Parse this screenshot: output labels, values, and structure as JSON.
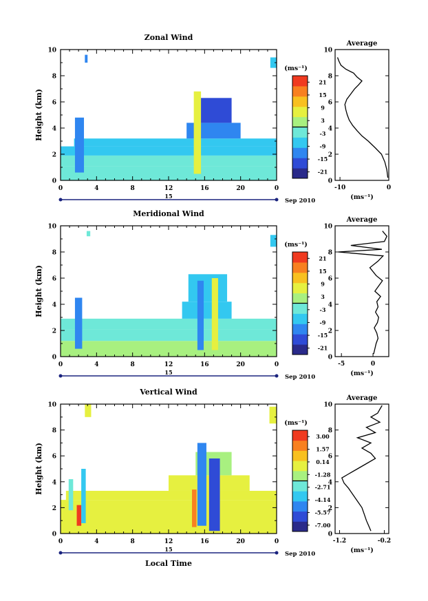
{
  "figure": {
    "date_label": "Sep 2010",
    "day_label": "15",
    "xlabel": "Local Time",
    "ylabel": "Height (km)",
    "unit_label": "(ms⁻¹)",
    "average_title": "Average",
    "x_ticks": [
      "0",
      "4",
      "8",
      "12",
      "16",
      "20",
      "0"
    ],
    "y_ticks": [
      "0",
      "2",
      "4",
      "6",
      "8",
      "10"
    ]
  },
  "chart_data": [
    {
      "type": "heatmap",
      "title": "Zonal Wind",
      "x_range_hours": [
        0,
        24
      ],
      "y_range_km": [
        0,
        10
      ],
      "colorbar": {
        "labels": [
          "21",
          "15",
          "9",
          "3",
          "-3",
          "-9",
          "-15",
          "-21"
        ],
        "min": -24,
        "max": 24
      },
      "palette": [
        "#2a2a8a",
        "#2f4bd6",
        "#2f86f0",
        "#33c8f0",
        "#6ee8d8",
        "#a8f080",
        "#e6f040",
        "#f8c020",
        "#f88020",
        "#f03a20"
      ],
      "regions": [
        {
          "x": [
            0,
            24
          ],
          "y": [
            0,
            1.1
          ],
          "v": -1
        },
        {
          "x": [
            0,
            24
          ],
          "y": [
            1.1,
            1.9
          ],
          "v": -3
        },
        {
          "x": [
            0,
            24
          ],
          "y": [
            1.9,
            2.6
          ],
          "v": -5
        },
        {
          "x": [
            1.5,
            24
          ],
          "y": [
            2.6,
            3.2
          ],
          "v": -7
        },
        {
          "x": [
            14,
            20
          ],
          "y": [
            3.2,
            4.4
          ],
          "v": -10
        },
        {
          "x": [
            15,
            19
          ],
          "y": [
            4.4,
            6.3
          ],
          "v": -15
        },
        {
          "x": [
            1.6,
            2.6
          ],
          "y": [
            0.6,
            4.8
          ],
          "v": -13
        },
        {
          "x": [
            14.8,
            15.6
          ],
          "y": [
            0.5,
            6.8
          ],
          "v": 6
        },
        {
          "x": [
            23.3,
            24
          ],
          "y": [
            8.6,
            9.4
          ],
          "v": -8
        },
        {
          "x": [
            2.7,
            3.0
          ],
          "y": [
            9.0,
            9.6
          ],
          "v": -14
        }
      ],
      "average": {
        "xticks": [
          "-10",
          "0"
        ],
        "xlim": [
          -11,
          0
        ],
        "ylim": [
          0,
          10
        ],
        "x": [
          -0.2,
          -0.4,
          -0.8,
          -1.5,
          -2.8,
          -4.2,
          -5.5,
          -6.5,
          -7.4,
          -8.1,
          -8.5,
          -8.8,
          -9.0,
          -8.6,
          -7.8,
          -7.0,
          -6.2,
          -5.5,
          -6.5,
          -7.2,
          -8.8,
          -9.8,
          -10.2,
          -10.5
        ],
        "y": [
          0.2,
          0.8,
          1.4,
          2.0,
          2.5,
          3.0,
          3.4,
          3.8,
          4.2,
          4.6,
          5.0,
          5.4,
          5.8,
          6.2,
          6.6,
          7.0,
          7.3,
          7.6,
          7.9,
          8.2,
          8.5,
          8.8,
          9.1,
          9.4
        ]
      }
    },
    {
      "type": "heatmap",
      "title": "Meridional Wind",
      "x_range_hours": [
        0,
        24
      ],
      "y_range_km": [
        0,
        10
      ],
      "colorbar": {
        "labels": [
          "21",
          "15",
          "9",
          "3",
          "-3",
          "-9",
          "-15",
          "-21"
        ],
        "min": -24,
        "max": 24
      },
      "palette": [
        "#2a2a8a",
        "#2f4bd6",
        "#2f86f0",
        "#33c8f0",
        "#6ee8d8",
        "#a8f080",
        "#e6f040",
        "#f8c020",
        "#f88020",
        "#f03a20"
      ],
      "regions": [
        {
          "x": [
            0,
            24
          ],
          "y": [
            0,
            1.2
          ],
          "v": 1
        },
        {
          "x": [
            0,
            24
          ],
          "y": [
            1.2,
            2.1
          ],
          "v": -1
        },
        {
          "x": [
            0,
            24
          ],
          "y": [
            2.1,
            2.9
          ],
          "v": -3
        },
        {
          "x": [
            13.5,
            19
          ],
          "y": [
            2.9,
            4.2
          ],
          "v": -5
        },
        {
          "x": [
            14.2,
            18.5
          ],
          "y": [
            4.2,
            6.3
          ],
          "v": -7
        },
        {
          "x": [
            1.6,
            2.4
          ],
          "y": [
            0.6,
            4.5
          ],
          "v": -12
        },
        {
          "x": [
            15.2,
            15.9
          ],
          "y": [
            0.5,
            5.8
          ],
          "v": -12
        },
        {
          "x": [
            16.8,
            17.5
          ],
          "y": [
            0.5,
            6.0
          ],
          "v": 5
        },
        {
          "x": [
            23.3,
            24
          ],
          "y": [
            8.4,
            9.3
          ],
          "v": -5
        },
        {
          "x": [
            2.9,
            3.3
          ],
          "y": [
            9.2,
            9.6
          ],
          "v": -4
        }
      ],
      "average": {
        "xticks": [
          "-5",
          "0"
        ],
        "xlim": [
          -6,
          2.5
        ],
        "ylim": [
          0,
          10
        ],
        "x": [
          0.1,
          0.3,
          0.5,
          0.8,
          0.6,
          0.2,
          0.7,
          0.9,
          0.4,
          0.8,
          0.6,
          1.2,
          0.3,
          0.9,
          1.5,
          0.5,
          -0.5,
          0.8,
          1.6,
          -5.5,
          1.4,
          -3.5,
          1.8,
          2.2,
          1.5
        ],
        "y": [
          0.2,
          0.6,
          1.0,
          1.4,
          1.8,
          2.2,
          2.6,
          3.0,
          3.4,
          3.8,
          4.2,
          4.6,
          5.0,
          5.4,
          5.8,
          6.2,
          6.8,
          7.3,
          7.7,
          8.0,
          8.2,
          8.5,
          8.8,
          9.2,
          9.6
        ]
      }
    },
    {
      "type": "heatmap",
      "title": "Vertical Wind",
      "x_range_hours": [
        0,
        24
      ],
      "y_range_km": [
        0,
        10
      ],
      "colorbar": {
        "labels": [
          "3.00",
          "1.57",
          "0.14",
          "-1.28",
          "-2.71",
          "-4.14",
          "-5.57",
          "-7.00"
        ],
        "min": -7.7,
        "max": 3.7
      },
      "palette": [
        "#2a2a8a",
        "#2f4bd6",
        "#2f86f0",
        "#33c8f0",
        "#6ee8d8",
        "#a8f080",
        "#e6f040",
        "#f8c020",
        "#f88020",
        "#f03a20"
      ],
      "regions": [
        {
          "x": [
            0,
            24
          ],
          "y": [
            0,
            2.6
          ],
          "v": -0.3
        },
        {
          "x": [
            0.6,
            24
          ],
          "y": [
            2.6,
            3.3
          ],
          "v": -0.6
        },
        {
          "x": [
            12,
            21
          ],
          "y": [
            3.3,
            4.5
          ],
          "v": -0.5
        },
        {
          "x": [
            15,
            19
          ],
          "y": [
            4.5,
            6.3
          ],
          "v": -2.0
        },
        {
          "x": [
            15.2,
            16.2
          ],
          "y": [
            0.6,
            7.0
          ],
          "v": -4.5
        },
        {
          "x": [
            16.5,
            17.7
          ],
          "y": [
            0.2,
            5.8
          ],
          "v": -5.8
        },
        {
          "x": [
            14.6,
            15.1
          ],
          "y": [
            0.5,
            3.4
          ],
          "v": 2.2
        },
        {
          "x": [
            1.8,
            2.3
          ],
          "y": [
            0.6,
            2.2
          ],
          "v": 3.2
        },
        {
          "x": [
            2.3,
            2.8
          ],
          "y": [
            0.8,
            5.0
          ],
          "v": -4.0
        },
        {
          "x": [
            0.9,
            1.4
          ],
          "y": [
            1.8,
            4.2
          ],
          "v": -3.0
        },
        {
          "x": [
            2.7,
            3.4
          ],
          "y": [
            9.0,
            10.0
          ],
          "v": -0.4
        },
        {
          "x": [
            23.2,
            24
          ],
          "y": [
            8.5,
            9.8
          ],
          "v": -0.8
        }
      ],
      "average": {
        "xticks": [
          "-1.2",
          "-0.2"
        ],
        "xlim": [
          -1.3,
          -0.1
        ],
        "ylim": [
          0,
          10
        ],
        "x": [
          -0.5,
          -0.55,
          -0.6,
          -0.65,
          -0.7,
          -0.8,
          -0.9,
          -1.0,
          -1.1,
          -1.15,
          -1.0,
          -0.8,
          -0.6,
          -0.4,
          -0.5,
          -0.7,
          -0.5,
          -0.8,
          -0.4,
          -0.6,
          -0.3,
          -0.5,
          -0.35,
          -0.3,
          -0.25
        ],
        "y": [
          0.2,
          0.6,
          1.0,
          1.5,
          2.0,
          2.5,
          3.0,
          3.5,
          3.9,
          4.3,
          4.6,
          5.0,
          5.4,
          5.8,
          6.2,
          6.6,
          7.0,
          7.4,
          7.8,
          8.2,
          8.6,
          9.0,
          9.3,
          9.6,
          9.9
        ]
      }
    }
  ]
}
